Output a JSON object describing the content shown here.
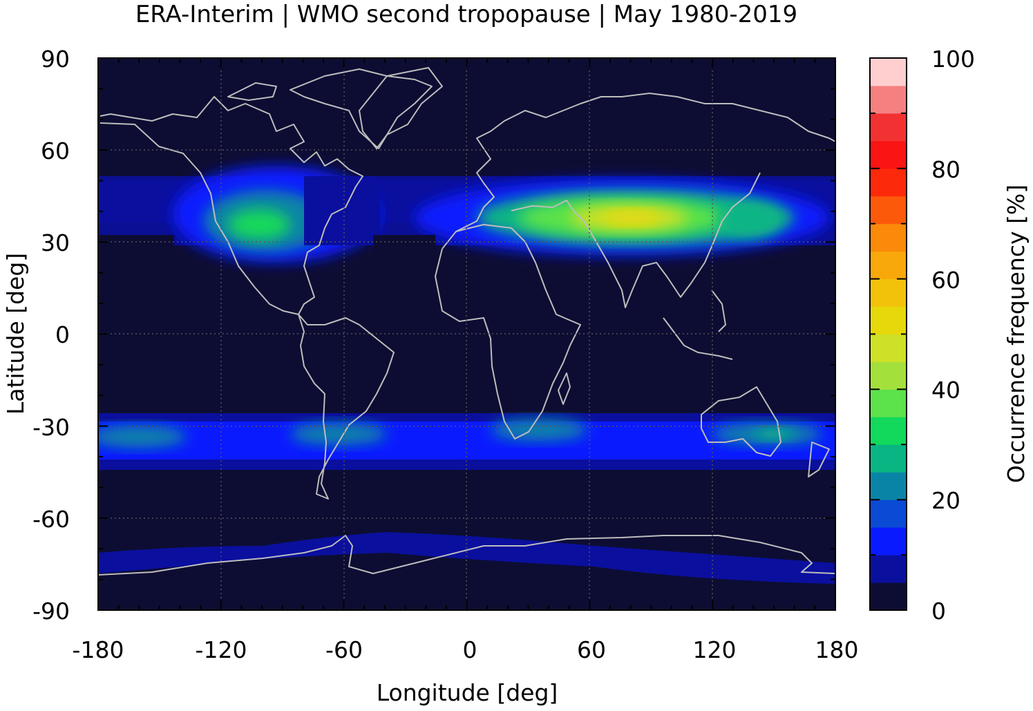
{
  "chart_data": {
    "type": "heatmap",
    "title": "ERA-Interim | WMO second tropopause | May 1980-2019",
    "xlabel": "Longitude [deg]",
    "ylabel": "Latitude [deg]",
    "xlim": [
      -180,
      180
    ],
    "ylim": [
      -90,
      90
    ],
    "x_ticks": [
      "-180",
      "-120",
      "-60",
      "0",
      "60",
      "120",
      "180"
    ],
    "y_ticks": [
      "90",
      "60",
      "30",
      "0",
      "-30",
      "-60",
      "-90"
    ],
    "grid": "dotted",
    "coastlines": true,
    "colorbar": {
      "label": "Occurrence frequency [%]",
      "ticks": [
        "0",
        "20",
        "40",
        "60",
        "80",
        "100"
      ],
      "range": [
        0,
        100
      ],
      "colors": [
        "#0d0d33",
        "#0a0f9e",
        "#0a1aff",
        "#0a4ad4",
        "#0a84a6",
        "#0ab584",
        "#12d85c",
        "#5ce24a",
        "#a4e03c",
        "#cfe028",
        "#e6d80a",
        "#f2c20a",
        "#f8a80a",
        "#fb8a0a",
        "#fc5a0a",
        "#fc2a0a",
        "#fa1414",
        "#f23232",
        "#f58080",
        "#ffcfcf"
      ]
    },
    "features": [
      {
        "name": "north-america-band",
        "lon": -100,
        "lat": 37,
        "peak": 30
      },
      {
        "name": "north-atlantic-band",
        "lon": -60,
        "lat": 38,
        "peak": 10
      },
      {
        "name": "eurasia-band",
        "lon": 75,
        "lat": 37,
        "peak": 55
      },
      {
        "name": "east-asia-band",
        "lon": 135,
        "lat": 37,
        "peak": 20
      },
      {
        "name": "southern-midlatitude-band",
        "lon": 0,
        "lat": -32,
        "peak": 20
      },
      {
        "name": "antarctic-band",
        "lon": 0,
        "lat": -75,
        "peak": 8
      }
    ]
  }
}
